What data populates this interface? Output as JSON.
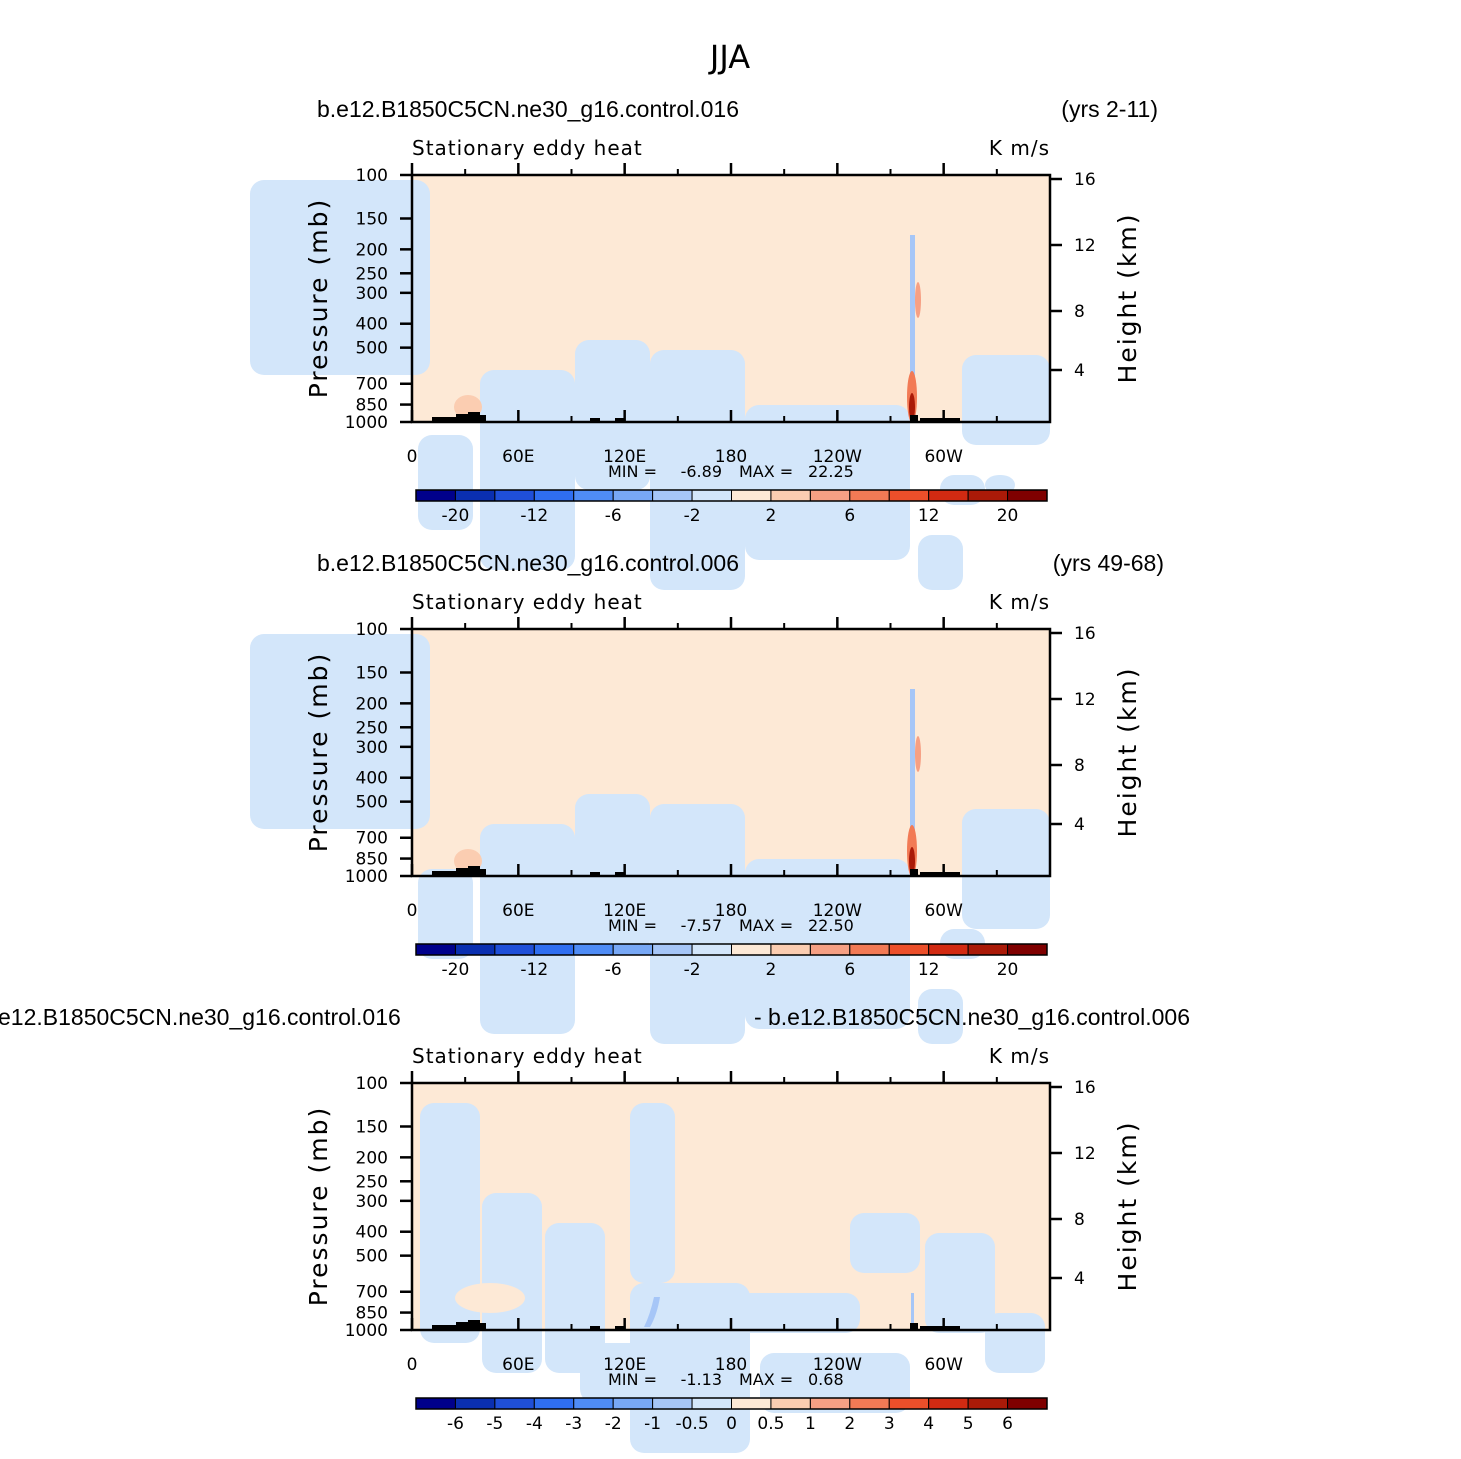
{
  "chart_data": {
    "type": "heatmap",
    "title": "JJA",
    "colors": {
      "blue_scale": [
        "#00008b",
        "#0a2fb0",
        "#1f4fd8",
        "#2f6ef0",
        "#4f8cf5",
        "#78a8f5",
        "#a6c6f7",
        "#d3e6fa"
      ],
      "red_scale": [
        "#fde9d6",
        "#fbcdb1",
        "#f6a084",
        "#f27a55",
        "#ec4f2a",
        "#d22a12",
        "#aa1a08",
        "#7f0000"
      ],
      "light_blue": "#d3e6fa",
      "light_red": "#fde9d6",
      "topography": "#000000"
    },
    "panels": [
      {
        "left_title": "b.e12.B1850C5CN.ne30_g16.control.016",
        "right_title": "(yrs 2-11)",
        "field_label": "Stationary eddy heat",
        "units": "K m/s",
        "ylabel": "Pressure (mb)",
        "right_ylabel": "Height (km)",
        "x_ticks": [
          "0",
          "60E",
          "120E",
          "180",
          "120W",
          "60W"
        ],
        "x_range": [
          0,
          360
        ],
        "y_ticks": [
          "100",
          "150",
          "200",
          "250",
          "300",
          "400",
          "500",
          "700",
          "850",
          "1000"
        ],
        "y_range": [
          100,
          1000
        ],
        "height_ticks": [
          "16",
          "12",
          "8",
          "4"
        ],
        "min_label": "MIN =",
        "min_value": "-6.89",
        "max_label": "MAX =",
        "max_value": "22.25",
        "colorbar_labels": [
          "-20",
          "-12",
          "-6",
          "-2",
          "2",
          "6",
          "12",
          "20"
        ],
        "colorbar_mode": "sparse"
      },
      {
        "left_title": "b.e12.B1850C5CN.ne30_g16.control.006",
        "right_title": "(yrs 49-68)",
        "field_label": "Stationary eddy heat",
        "units": "K m/s",
        "ylabel": "Pressure (mb)",
        "right_ylabel": "Height (km)",
        "x_ticks": [
          "0",
          "60E",
          "120E",
          "180",
          "120W",
          "60W"
        ],
        "x_range": [
          0,
          360
        ],
        "y_ticks": [
          "100",
          "150",
          "200",
          "250",
          "300",
          "400",
          "500",
          "700",
          "850",
          "1000"
        ],
        "y_range": [
          100,
          1000
        ],
        "height_ticks": [
          "16",
          "12",
          "8",
          "4"
        ],
        "min_label": "MIN =",
        "min_value": "-7.57",
        "max_label": "MAX =",
        "max_value": "22.50",
        "colorbar_labels": [
          "-20",
          "-12",
          "-6",
          "-2",
          "2",
          "6",
          "12",
          "20"
        ],
        "colorbar_mode": "sparse"
      },
      {
        "left_title": "e12.B1850C5CN.ne30_g16.control.016",
        "right_title": "- b.e12.B1850C5CN.ne30_g16.control.006",
        "field_label": "Stationary eddy heat",
        "units": "K m/s",
        "ylabel": "Pressure (mb)",
        "right_ylabel": "Height (km)",
        "x_ticks": [
          "0",
          "60E",
          "120E",
          "180",
          "120W",
          "60W"
        ],
        "x_range": [
          0,
          360
        ],
        "y_ticks": [
          "100",
          "150",
          "200",
          "250",
          "300",
          "400",
          "500",
          "700",
          "850",
          "1000"
        ],
        "y_range": [
          100,
          1000
        ],
        "height_ticks": [
          "16",
          "12",
          "8",
          "4"
        ],
        "min_label": "MIN =",
        "min_value": "-1.13",
        "max_label": "MAX =",
        "max_value": "0.68",
        "colorbar_labels": [
          "-6",
          "-5",
          "-4",
          "-3",
          "-2",
          "-1",
          "-0.5",
          "0",
          "0.5",
          "1",
          "2",
          "3",
          "4",
          "5",
          "6"
        ],
        "colorbar_mode": "dense"
      }
    ]
  }
}
